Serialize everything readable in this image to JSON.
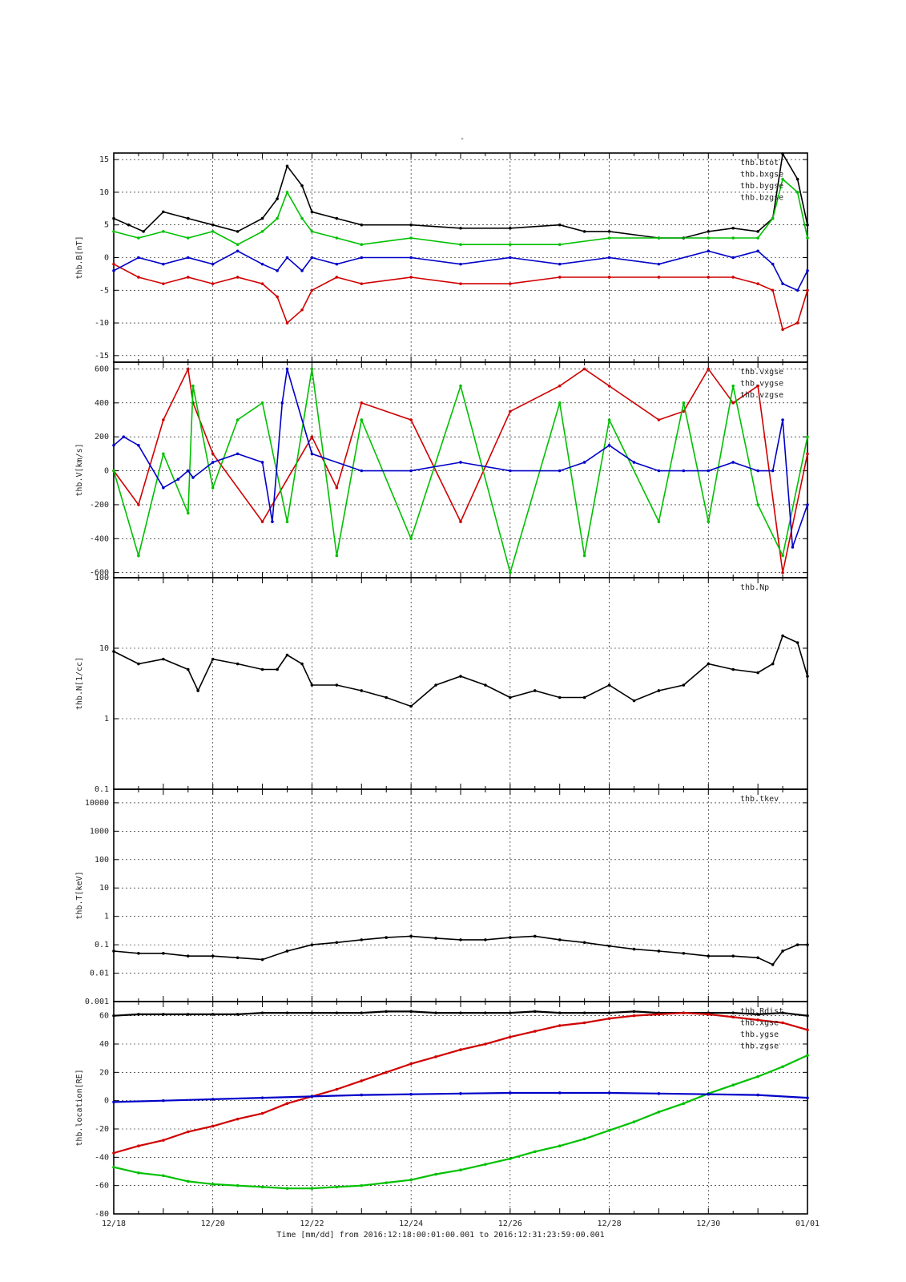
{
  "figure_title": "-",
  "xaxis_label": "Time [mm/dd]  from 2016:12:18:00:01:00.001  to  2016:12:31:23:59:00.001",
  "colors": {
    "black": "#000000",
    "red": "#d00000",
    "green": "#00c000",
    "blue": "#0000c8"
  },
  "chart_data": [
    {
      "type": "scatter",
      "panel": "B",
      "ylabel": "thb.B[nT]",
      "ylim": [
        -16,
        16
      ],
      "scale": "linear",
      "yticks": [
        -15,
        -10,
        -5,
        0,
        5,
        10,
        15
      ],
      "xlim_days": [
        0,
        14
      ],
      "xtick_labels": [
        "12/18",
        "12/20",
        "12/22",
        "12/24",
        "12/26",
        "12/28",
        "12/30",
        "01/01"
      ],
      "grid": true,
      "legend_placement": "top-right",
      "series": [
        {
          "name": "thb.btot",
          "color": "black",
          "x": [
            0,
            0.3,
            0.6,
            1,
            1.5,
            2,
            2.5,
            3,
            3.3,
            3.5,
            3.8,
            4,
            4.5,
            5,
            6,
            7,
            8,
            9,
            9.5,
            10,
            11,
            11.5,
            12,
            12.5,
            13,
            13.3,
            13.5,
            13.8,
            14
          ],
          "y": [
            6,
            5,
            4,
            7,
            6,
            5,
            4,
            6,
            9,
            14,
            11,
            7,
            6,
            5,
            5,
            4.5,
            4.5,
            5,
            4,
            4,
            3,
            3,
            4,
            4.5,
            4,
            6,
            16,
            12,
            5
          ]
        },
        {
          "name": "thb.bxgse",
          "color": "red",
          "x": [
            0,
            0.5,
            1,
            1.5,
            2,
            2.5,
            3,
            3.3,
            3.5,
            3.8,
            4,
            4.5,
            5,
            6,
            7,
            8,
            9,
            10,
            11,
            12,
            12.5,
            13,
            13.3,
            13.5,
            13.8,
            14
          ],
          "y": [
            -1,
            -3,
            -4,
            -3,
            -4,
            -3,
            -4,
            -6,
            -10,
            -8,
            -5,
            -3,
            -4,
            -3,
            -4,
            -4,
            -3,
            -3,
            -3,
            -3,
            -3,
            -4,
            -5,
            -11,
            -10,
            -5
          ]
        },
        {
          "name": "thb.bygse",
          "color": "green",
          "x": [
            0,
            0.5,
            1,
            1.5,
            2,
            2.5,
            3,
            3.3,
            3.5,
            3.8,
            4,
            4.5,
            5,
            6,
            7,
            8,
            9,
            10,
            11,
            12,
            12.5,
            13,
            13.3,
            13.5,
            13.8,
            14
          ],
          "y": [
            4,
            3,
            4,
            3,
            4,
            2,
            4,
            6,
            10,
            6,
            4,
            3,
            2,
            3,
            2,
            2,
            2,
            3,
            3,
            3,
            3,
            3,
            6,
            12,
            10,
            3
          ]
        },
        {
          "name": "thb.bzgse",
          "color": "blue",
          "x": [
            0,
            0.5,
            1,
            1.5,
            2,
            2.5,
            3,
            3.3,
            3.5,
            3.8,
            4,
            4.5,
            5,
            6,
            7,
            8,
            9,
            10,
            11,
            12,
            12.5,
            13,
            13.3,
            13.5,
            13.8,
            14
          ],
          "y": [
            -2,
            0,
            -1,
            0,
            -1,
            1,
            -1,
            -2,
            0,
            -2,
            0,
            -1,
            0,
            0,
            -1,
            0,
            -1,
            0,
            -1,
            1,
            0,
            1,
            -1,
            -4,
            -5,
            -2
          ]
        }
      ]
    },
    {
      "type": "scatter",
      "panel": "V",
      "ylabel": "thb.V[km/s]",
      "ylim": [
        -630,
        640
      ],
      "scale": "linear",
      "yticks": [
        -600,
        -400,
        -200,
        0,
        200,
        400,
        600
      ],
      "xlim_days": [
        0,
        14
      ],
      "grid": true,
      "legend_placement": "top-right",
      "series": [
        {
          "name": "thb.vxgse",
          "color": "red",
          "x": [
            0,
            0.5,
            1,
            1.5,
            1.6,
            2,
            3,
            4,
            4.5,
            5,
            6,
            7,
            8,
            9,
            9.5,
            10,
            11,
            11.5,
            12,
            12.5,
            13,
            13.5,
            14
          ],
          "y": [
            0,
            -200,
            300,
            600,
            400,
            100,
            -300,
            200,
            -100,
            400,
            300,
            -300,
            350,
            500,
            600,
            500,
            300,
            350,
            600,
            400,
            500,
            -600,
            100
          ]
        },
        {
          "name": "thb.vygse",
          "color": "green",
          "x": [
            0,
            0.5,
            1,
            1.5,
            1.6,
            2,
            2.5,
            3,
            3.5,
            4,
            4.5,
            5,
            6,
            7,
            8,
            9,
            9.5,
            10,
            11,
            11.5,
            12,
            12.5,
            13,
            13.5,
            14
          ],
          "y": [
            0,
            -500,
            100,
            -250,
            500,
            -100,
            300,
            400,
            -300,
            600,
            -500,
            300,
            -400,
            500,
            -600,
            400,
            -500,
            300,
            -300,
            400,
            -300,
            500,
            -200,
            -500,
            200
          ]
        },
        {
          "name": "thb.vzgse",
          "color": "blue",
          "x": [
            0,
            0.2,
            0.5,
            1,
            1.3,
            1.5,
            1.6,
            2,
            2.5,
            3,
            3.2,
            3.4,
            3.5,
            4,
            5,
            6,
            7,
            8,
            9,
            9.5,
            10,
            10.5,
            11,
            11.5,
            12,
            12.5,
            13,
            13.3,
            13.5,
            13.7,
            14
          ],
          "y": [
            150,
            200,
            150,
            -100,
            -50,
            0,
            -40,
            50,
            100,
            50,
            -300,
            400,
            600,
            100,
            0,
            0,
            50,
            0,
            0,
            50,
            150,
            50,
            0,
            0,
            0,
            50,
            0,
            0,
            300,
            -450,
            -200
          ]
        }
      ]
    },
    {
      "type": "scatter",
      "panel": "N",
      "ylabel": "thb.N[1/cc]",
      "ylim": [
        0.1,
        100
      ],
      "scale": "log",
      "yticks": [
        0.1,
        1,
        10,
        100
      ],
      "ytick_labels": [
        "0.1",
        "1",
        "10",
        "100"
      ],
      "xlim_days": [
        0,
        14
      ],
      "grid": true,
      "legend_placement": "top-right",
      "series": [
        {
          "name": "thb.Np",
          "color": "black",
          "x": [
            0,
            0.5,
            1,
            1.5,
            1.7,
            2,
            2.5,
            3,
            3.3,
            3.5,
            3.8,
            4,
            4.5,
            5,
            5.5,
            6,
            6.5,
            7,
            7.5,
            8,
            8.5,
            9,
            9.5,
            10,
            10.5,
            11,
            11.5,
            12,
            12.5,
            13,
            13.3,
            13.5,
            13.8,
            14
          ],
          "y": [
            9,
            6,
            7,
            5,
            2.5,
            7,
            6,
            5,
            5,
            8,
            6,
            3,
            3,
            2.5,
            2,
            1.5,
            3,
            4,
            3,
            2,
            2.5,
            2,
            2,
            3,
            1.8,
            2.5,
            3,
            6,
            5,
            4.5,
            6,
            15,
            12,
            4
          ]
        }
      ]
    },
    {
      "type": "scatter",
      "panel": "T",
      "ylabel": "thb.T[keV]",
      "ylim": [
        0.001,
        30000
      ],
      "scale": "log",
      "yticks": [
        0.001,
        0.01,
        0.1,
        1,
        10,
        100,
        1000,
        10000
      ],
      "ytick_labels": [
        "0.001",
        "0.01",
        "0.1",
        "1",
        "10",
        "100",
        "1000",
        "10000"
      ],
      "xlim_days": [
        0,
        14
      ],
      "grid": true,
      "legend_placement": "top-right",
      "series": [
        {
          "name": "thb.tkev",
          "color": "black",
          "x": [
            0,
            0.5,
            1,
            1.5,
            2,
            2.5,
            3,
            3.5,
            4,
            4.5,
            5,
            5.5,
            6,
            6.5,
            7,
            7.5,
            8,
            8.5,
            9,
            9.5,
            10,
            10.5,
            11,
            11.5,
            12,
            12.5,
            13,
            13.3,
            13.5,
            13.8,
            14
          ],
          "y": [
            0.06,
            0.05,
            0.05,
            0.04,
            0.04,
            0.035,
            0.03,
            0.06,
            0.1,
            0.12,
            0.15,
            0.18,
            0.2,
            0.17,
            0.15,
            0.15,
            0.18,
            0.2,
            0.15,
            0.12,
            0.09,
            0.07,
            0.06,
            0.05,
            0.04,
            0.04,
            0.035,
            0.02,
            0.06,
            0.1,
            0.1
          ]
        }
      ]
    },
    {
      "type": "line",
      "panel": "location",
      "ylabel": "thb.location[RE]",
      "ylim": [
        -80,
        70
      ],
      "scale": "linear",
      "yticks": [
        -80,
        -60,
        -40,
        -20,
        0,
        20,
        40,
        60
      ],
      "xlim_days": [
        0,
        14
      ],
      "grid": true,
      "legend_placement": "top-right",
      "series": [
        {
          "name": "thb.Rdist",
          "color": "black",
          "x": [
            0,
            0.5,
            1,
            1.5,
            2,
            2.5,
            3,
            3.5,
            4,
            4.5,
            5,
            5.5,
            6,
            6.5,
            7,
            7.5,
            8,
            8.5,
            9,
            9.5,
            10,
            10.5,
            11,
            11.5,
            12,
            12.5,
            13,
            13.5,
            14
          ],
          "y": [
            60,
            61,
            61,
            61,
            61,
            61,
            62,
            62,
            62,
            62,
            62,
            63,
            63,
            62,
            62,
            62,
            62,
            63,
            62,
            62,
            62,
            63,
            62,
            62,
            62,
            62,
            61,
            62,
            60
          ]
        },
        {
          "name": "thb.xgse",
          "color": "red",
          "x": [
            0,
            0.5,
            1,
            1.5,
            2,
            2.5,
            3,
            3.5,
            4,
            4.5,
            5,
            5.5,
            6,
            6.5,
            7,
            7.5,
            8,
            8.5,
            9,
            9.5,
            10,
            10.5,
            11,
            11.5,
            12,
            12.5,
            13,
            13.5,
            14
          ],
          "y": [
            -37,
            -32,
            -28,
            -22,
            -18,
            -13,
            -9,
            -2,
            3,
            8,
            14,
            20,
            26,
            31,
            36,
            40,
            45,
            49,
            53,
            55,
            58,
            60,
            61,
            62,
            61,
            59,
            57,
            55,
            50
          ]
        },
        {
          "name": "thb.ygse",
          "color": "green",
          "x": [
            0,
            0.5,
            1,
            1.5,
            2,
            2.5,
            3,
            3.5,
            4,
            4.5,
            5,
            5.5,
            6,
            6.5,
            7,
            7.5,
            8,
            8.5,
            9,
            9.5,
            10,
            10.5,
            11,
            11.5,
            12,
            12.5,
            13,
            13.5,
            14
          ],
          "y": [
            -47,
            -51,
            -53,
            -57,
            -59,
            -60,
            -61,
            -62,
            -62,
            -61,
            -60,
            -58,
            -56,
            -52,
            -49,
            -45,
            -41,
            -36,
            -32,
            -27,
            -21,
            -15,
            -8,
            -2,
            5,
            11,
            17,
            24,
            32
          ]
        },
        {
          "name": "thb.zgse",
          "color": "blue",
          "x": [
            0,
            1,
            2,
            3,
            4,
            5,
            6,
            7,
            8,
            9,
            10,
            11,
            12,
            13,
            14
          ],
          "y": [
            -1,
            0,
            1,
            2,
            3,
            4,
            4.5,
            5,
            5.5,
            5.5,
            5.5,
            5,
            4.5,
            4,
            2
          ]
        }
      ]
    }
  ]
}
